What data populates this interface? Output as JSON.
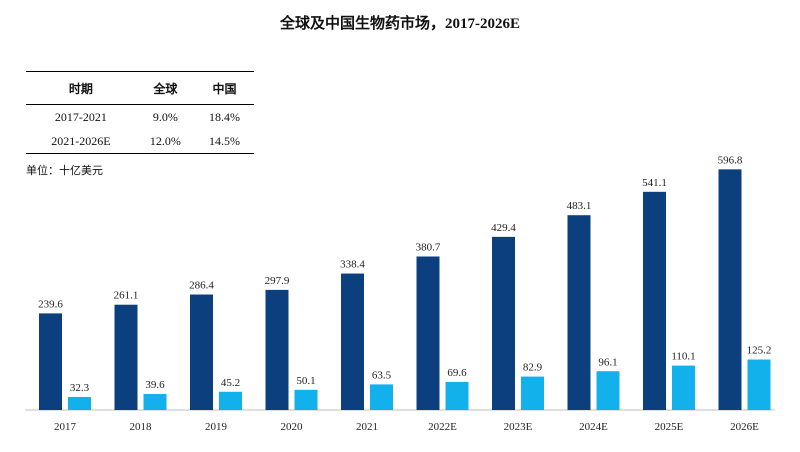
{
  "chart_data": {
    "type": "bar",
    "title": "全球及中国生物药市场，2017-2026E",
    "unit": "单位：十亿美元",
    "categories": [
      "2017",
      "2018",
      "2019",
      "2020",
      "2021",
      "2022E",
      "2023E",
      "2024E",
      "2025E",
      "2026E"
    ],
    "series": [
      {
        "values": [
          239.6,
          261.1,
          286.4,
          297.9,
          338.4,
          380.7,
          429.4,
          483.1,
          541.1,
          596.8
        ],
        "color": "#0b3f7e"
      },
      {
        "values": [
          32.3,
          39.6,
          45.2,
          50.1,
          63.5,
          69.6,
          82.9,
          96.1,
          110.1,
          125.2
        ],
        "color": "#12b1ec"
      }
    ],
    "ylim": [
      0,
      620
    ]
  },
  "table": {
    "headers": [
      "时期",
      "全球",
      "中国"
    ],
    "rows": [
      [
        "2017-2021",
        "9.0%",
        "18.4%"
      ],
      [
        "2021-2026E",
        "12.0%",
        "14.5%"
      ]
    ]
  }
}
